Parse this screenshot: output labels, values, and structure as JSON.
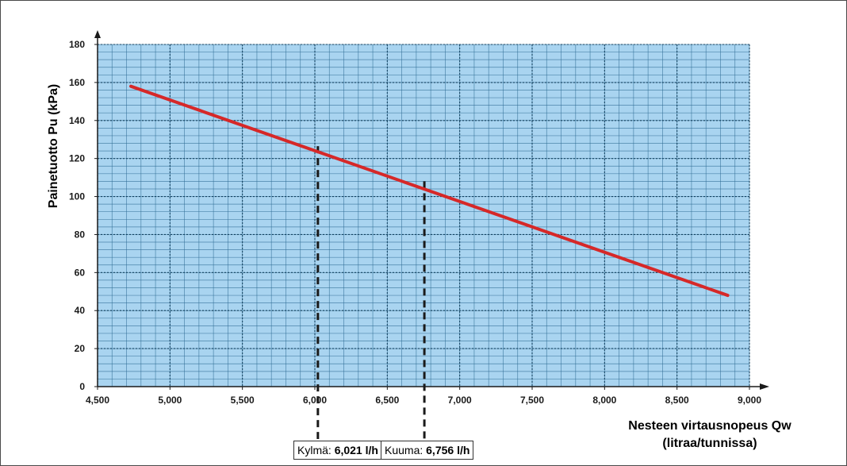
{
  "chart_data": {
    "type": "line",
    "xlabel": "Nesteen virtausnopeus Qw",
    "xlabel_sub": "(litraa/tunnissa)",
    "ylabel": "Painetuotto Pu (kPa)",
    "xlim": [
      4500,
      9000
    ],
    "ylim": [
      0,
      180
    ],
    "x_ticks": [
      "4,500",
      "5,000",
      "5,500",
      "6,000",
      "6,500",
      "7,000",
      "7,500",
      "8,000",
      "8,500",
      "9,000"
    ],
    "y_ticks": [
      "0",
      "20",
      "40",
      "60",
      "80",
      "100",
      "120",
      "140",
      "160",
      "180"
    ],
    "grid": true,
    "series": [
      {
        "x": [
          4730,
          8850
        ],
        "y": [
          158,
          48
        ]
      }
    ],
    "markers": [
      {
        "x": 6021,
        "y": 126.5,
        "prefix": "Kylmä: ",
        "value": "6,021 l/h"
      },
      {
        "x": 6756,
        "y": 108,
        "prefix": "Kuuma: ",
        "value": "6,756 l/h"
      }
    ],
    "colors": {
      "plot_bg": "#a9d4f0",
      "grid": "#2e6b93",
      "line": "#d62828",
      "axis": "#1a1a1a",
      "marker": "#1a1a1a"
    }
  }
}
